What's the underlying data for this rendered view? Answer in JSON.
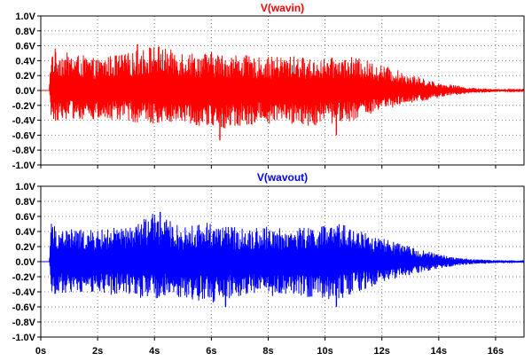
{
  "chart_data": [
    {
      "type": "line",
      "title": "V(wavin)",
      "title_color": "#ff0000",
      "xlim": [
        0,
        17
      ],
      "ylim": [
        -1.0,
        1.0
      ],
      "grid": true,
      "x_ticks": [
        "0s",
        "2s",
        "4s",
        "6s",
        "8s",
        "10s",
        "12s",
        "14s",
        "16s"
      ],
      "y_ticks": [
        "1.0V",
        "0.8V",
        "0.6V",
        "0.4V",
        "0.2V",
        "0.0V",
        "-0.2V",
        "-0.4V",
        "-0.6V",
        "-0.8V",
        "-1.0V"
      ],
      "series": [
        {
          "name": "V(wavin)",
          "color": "#ff0000",
          "x_units": "s",
          "envelope": {
            "x": [
              0,
              0.3,
              0.35,
              0.6,
              1,
              1.5,
              2,
              2.5,
              3,
              3.5,
              4,
              4.5,
              5,
              5.5,
              6,
              6.5,
              7,
              7.5,
              8,
              8.5,
              9,
              9.5,
              10,
              10.5,
              11,
              11.5,
              12,
              12.5,
              13,
              13.5,
              14,
              14.5,
              15,
              15.5,
              16,
              16.5,
              17
            ],
            "upper": [
              0,
              0,
              0.6,
              0.55,
              0.5,
              0.47,
              0.42,
              0.48,
              0.5,
              0.55,
              0.63,
              0.55,
              0.55,
              0.5,
              0.52,
              0.48,
              0.5,
              0.44,
              0.45,
              0.46,
              0.47,
              0.42,
              0.43,
              0.45,
              0.45,
              0.4,
              0.35,
              0.28,
              0.22,
              0.16,
              0.1,
              0.08,
              0.04,
              0.03,
              0.02,
              0.01,
              0.01
            ],
            "lower": [
              0,
              0,
              -0.42,
              -0.4,
              -0.38,
              -0.4,
              -0.4,
              -0.42,
              -0.4,
              -0.45,
              -0.45,
              -0.42,
              -0.43,
              -0.47,
              -0.5,
              -0.52,
              -0.5,
              -0.45,
              -0.45,
              -0.42,
              -0.47,
              -0.48,
              -0.45,
              -0.45,
              -0.4,
              -0.33,
              -0.28,
              -0.22,
              -0.18,
              -0.14,
              -0.1,
              -0.07,
              -0.04,
              -0.03,
              -0.02,
              -0.01,
              -0.01
            ]
          },
          "peaks": [
            {
              "x": 3.4,
              "y": 0.62
            },
            {
              "x": 6.3,
              "y": -0.67
            },
            {
              "x": 10.4,
              "y": -0.6
            }
          ]
        }
      ]
    },
    {
      "type": "line",
      "title": "V(wavout)",
      "title_color": "#0000ff",
      "xlim": [
        0,
        17
      ],
      "ylim": [
        -1.0,
        1.0
      ],
      "grid": true,
      "x_ticks": [
        "0s",
        "2s",
        "4s",
        "6s",
        "8s",
        "10s",
        "12s",
        "14s",
        "16s"
      ],
      "y_ticks": [
        "1.0V",
        "0.8V",
        "0.6V",
        "0.4V",
        "0.2V",
        "0.0V",
        "-0.2V",
        "-0.4V",
        "-0.6V",
        "-0.8V",
        "-1.0V"
      ],
      "series": [
        {
          "name": "V(wavout)",
          "color": "#0000ff",
          "x_units": "s",
          "envelope": {
            "x": [
              0,
              0.3,
              0.35,
              0.6,
              1,
              1.5,
              2,
              2.5,
              3,
              3.5,
              4,
              4.5,
              5,
              5.5,
              6,
              6.5,
              7,
              7.5,
              8,
              8.5,
              9,
              9.5,
              10,
              10.5,
              11,
              11.5,
              12,
              12.5,
              13,
              13.5,
              14,
              14.5,
              15,
              15.5,
              16,
              16.5,
              17
            ],
            "upper": [
              0,
              0,
              0.55,
              0.45,
              0.45,
              0.42,
              0.42,
              0.45,
              0.45,
              0.55,
              0.65,
              0.55,
              0.45,
              0.5,
              0.55,
              0.48,
              0.45,
              0.45,
              0.47,
              0.44,
              0.45,
              0.47,
              0.48,
              0.5,
              0.47,
              0.38,
              0.32,
              0.25,
              0.2,
              0.15,
              0.1,
              0.06,
              0.04,
              0.03,
              0.02,
              0.02,
              0.01
            ],
            "lower": [
              0,
              0,
              -0.45,
              -0.42,
              -0.42,
              -0.42,
              -0.4,
              -0.45,
              -0.42,
              -0.5,
              -0.5,
              -0.45,
              -0.48,
              -0.52,
              -0.55,
              -0.5,
              -0.48,
              -0.45,
              -0.47,
              -0.43,
              -0.45,
              -0.48,
              -0.52,
              -0.5,
              -0.42,
              -0.35,
              -0.28,
              -0.22,
              -0.18,
              -0.13,
              -0.09,
              -0.06,
              -0.04,
              -0.03,
              -0.02,
              -0.02,
              -0.01
            ]
          },
          "peaks": [
            {
              "x": 4.2,
              "y": 0.66
            },
            {
              "x": 6.5,
              "y": -0.6
            },
            {
              "x": 10.4,
              "y": -0.6
            }
          ]
        }
      ]
    }
  ]
}
